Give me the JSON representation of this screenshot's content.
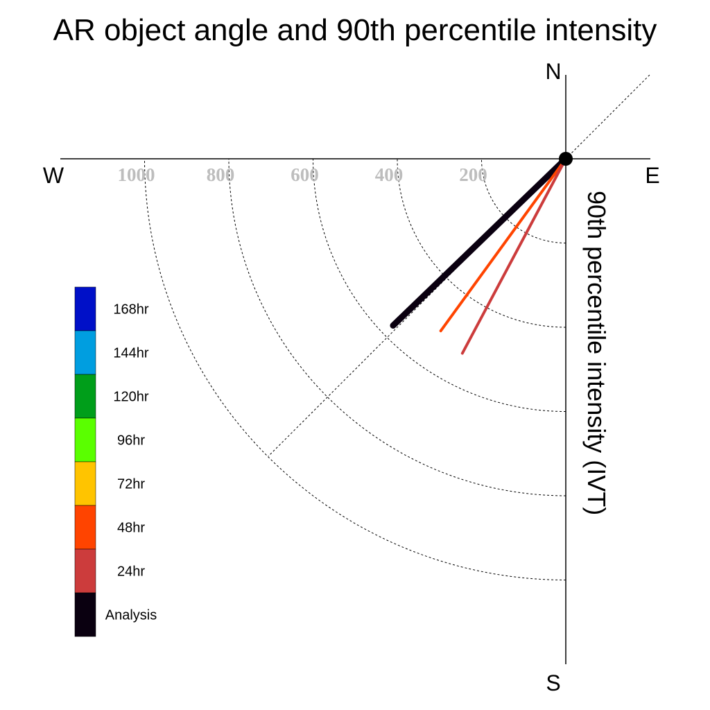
{
  "chart_data": {
    "type": "polar-line",
    "title": "AR object angle and 90th percentile intensity",
    "ylabel": "90th percentile intensity (IVT)",
    "compass": {
      "north": "N",
      "south": "S",
      "east": "E",
      "west": "W"
    },
    "radial_ticks": [
      "200",
      "400",
      "600",
      "800",
      "1000"
    ],
    "radial_max": 1200,
    "series": [
      {
        "name": "Analysis",
        "color": "#0a0010",
        "angle_deg": 226,
        "intensity": 570
      },
      {
        "name": "48hr",
        "color": "#ff4400",
        "angle_deg": 216,
        "intensity": 505
      },
      {
        "name": "24hr",
        "color": "#cc3c3c",
        "angle_deg": 208,
        "intensity": 523
      }
    ],
    "legend": [
      {
        "label": "168hr",
        "color": "#0010c8"
      },
      {
        "label": "144hr",
        "color": "#009ee0"
      },
      {
        "label": "120hr",
        "color": "#009e1a"
      },
      {
        "label": "96hr",
        "color": "#5aff00"
      },
      {
        "label": "72hr",
        "color": "#ffc400"
      },
      {
        "label": "48hr",
        "color": "#ff4400"
      },
      {
        "label": "24hr",
        "color": "#cc3c3c"
      },
      {
        "label": "Analysis",
        "color": "#0a0010"
      }
    ]
  }
}
